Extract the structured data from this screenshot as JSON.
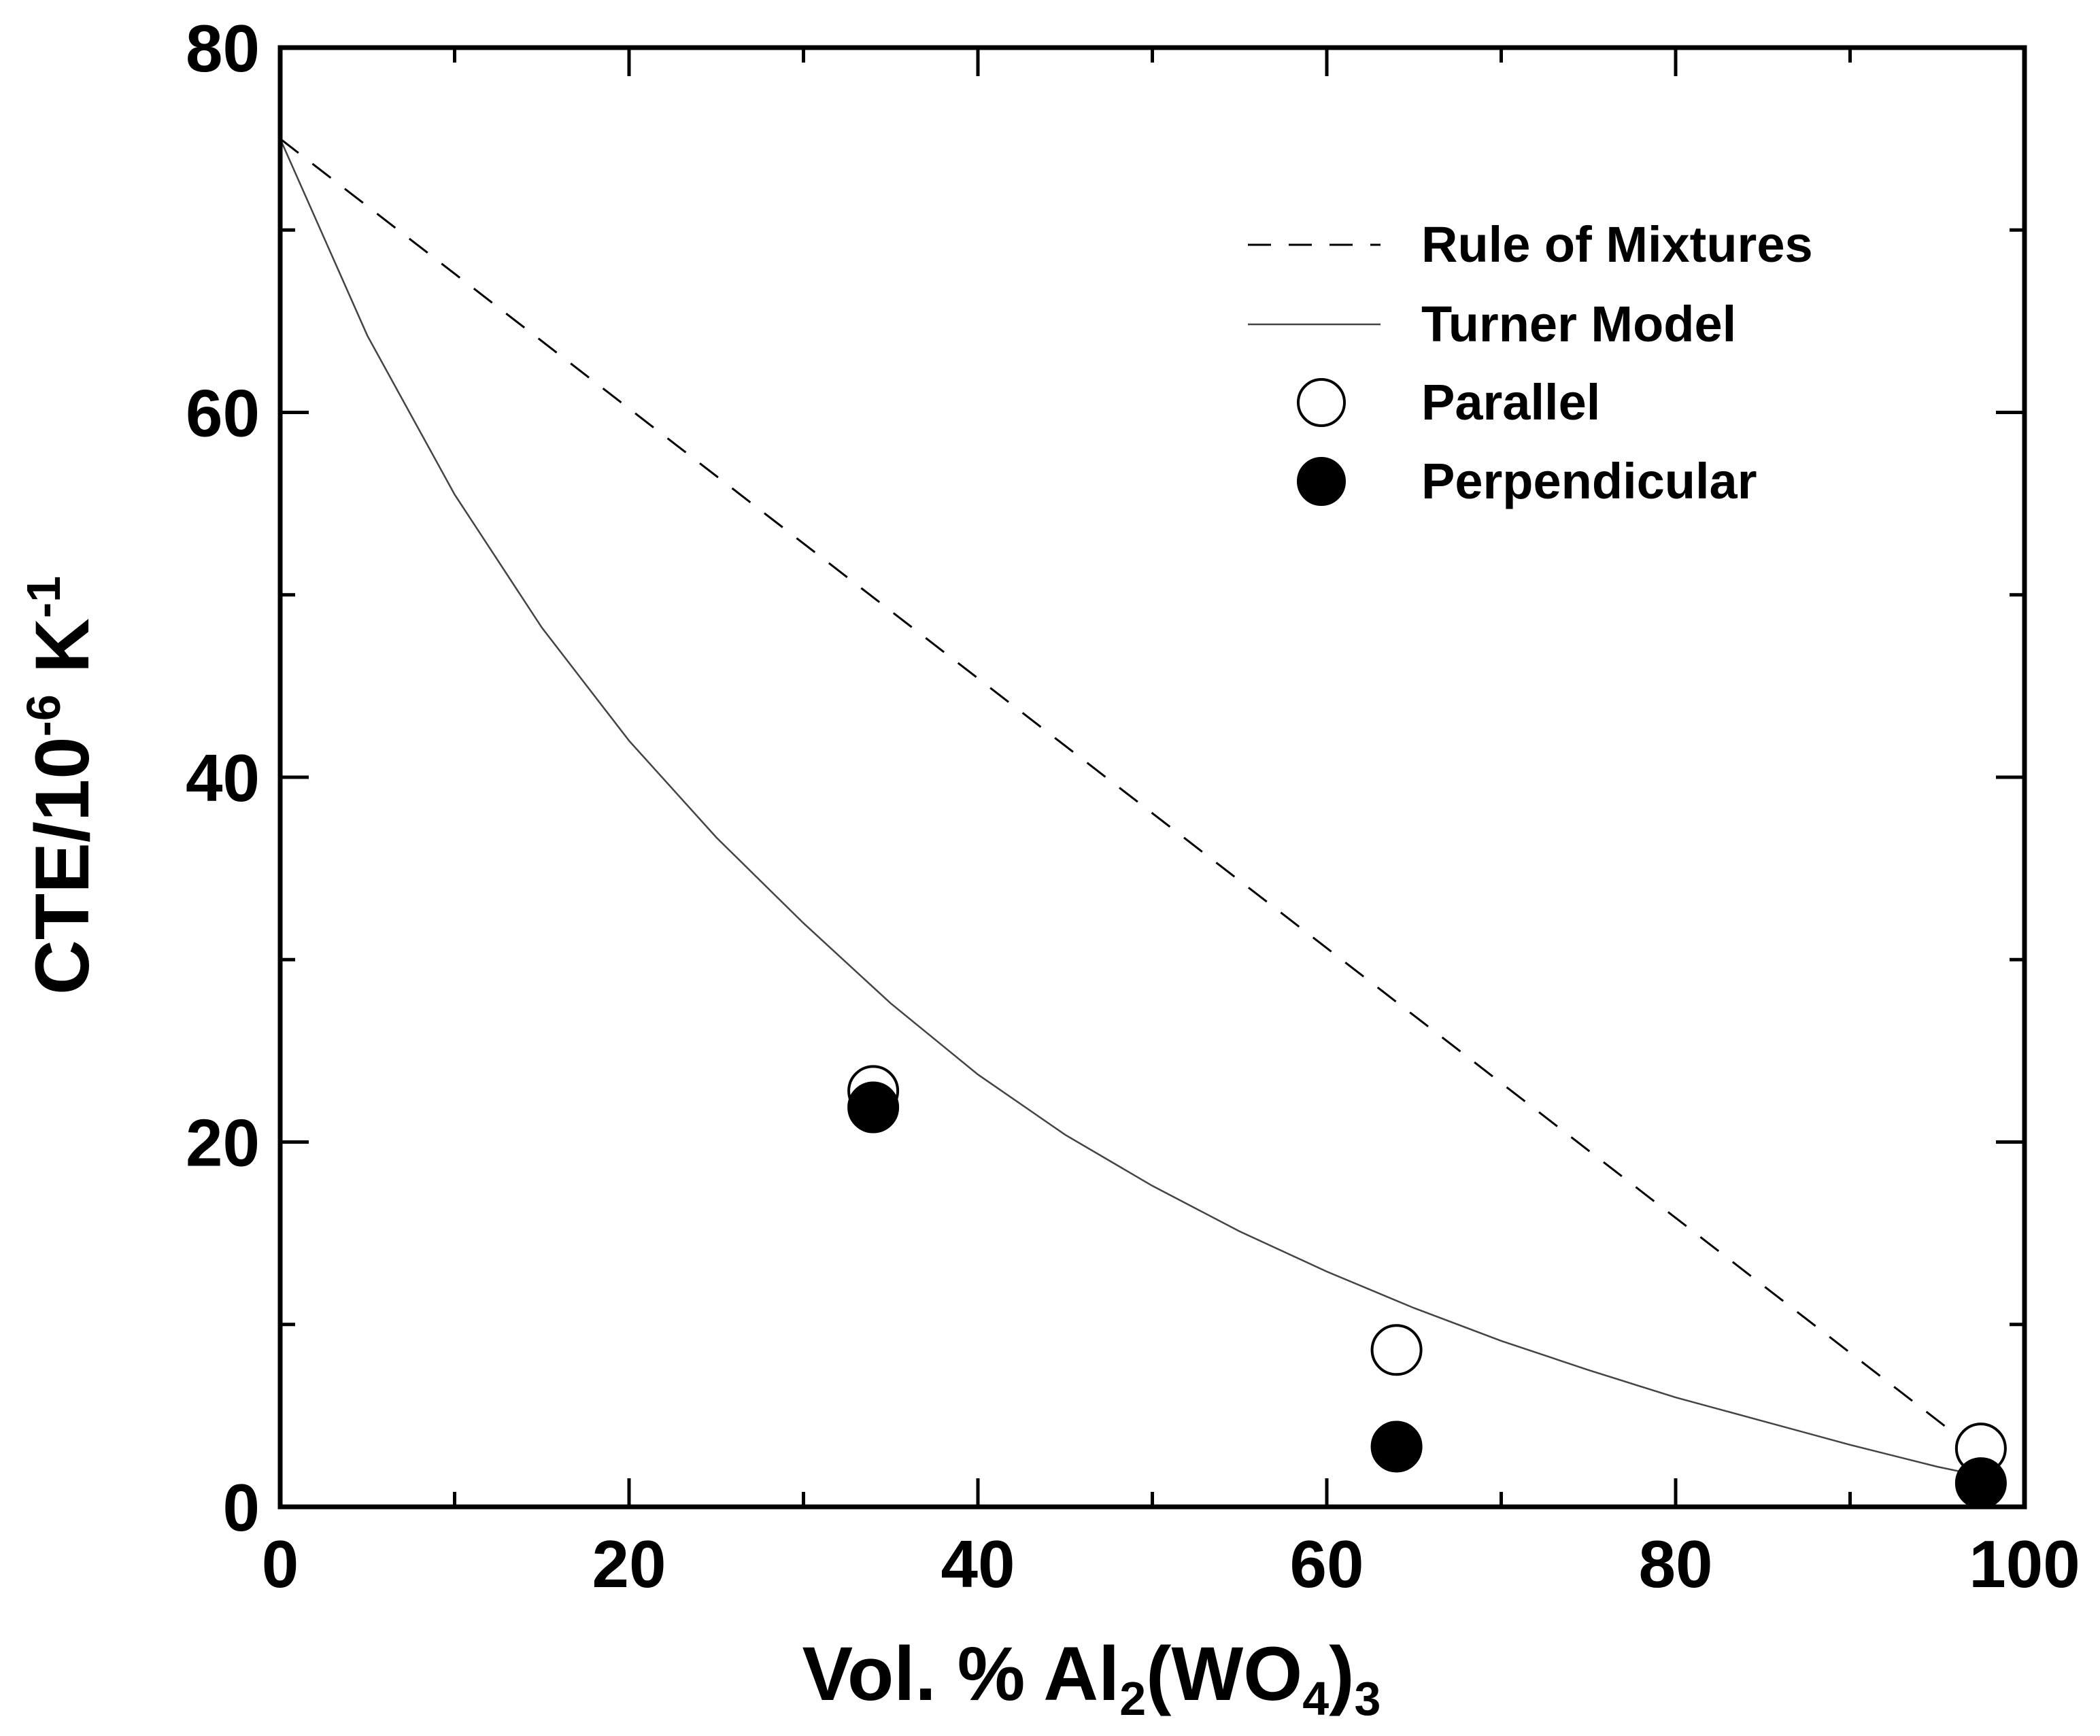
{
  "chart_data": {
    "type": "line",
    "x_label": {
      "prefix": "Vol. % Al",
      "sub1": "2",
      "mid": "(WO",
      "sub2": "4",
      "close": ")",
      "sub3": "3"
    },
    "y_label": {
      "main": "CTE/10",
      "sup1": "-6",
      "unit": " K",
      "sup2": "-1"
    },
    "xlim": [
      0,
      100
    ],
    "ylim": [
      0,
      80
    ],
    "x_ticks": [
      0,
      20,
      40,
      60,
      80,
      100
    ],
    "y_ticks": [
      0,
      20,
      40,
      60,
      80
    ],
    "x_minor_step": 10,
    "y_minor_step": 10,
    "series": [
      {
        "name": "Rule of Mixtures",
        "style": "dashed",
        "color": "#000000",
        "x": [
          0,
          97.5
        ],
        "y": [
          75,
          2.9
        ]
      },
      {
        "name": "Turner Model",
        "style": "solid",
        "color": "#444444",
        "x": [
          0,
          5,
          10,
          15,
          20,
          25,
          30,
          35,
          40,
          45,
          50,
          55,
          60,
          65,
          70,
          75,
          80,
          85,
          90,
          95,
          97.5
        ],
        "y": [
          75,
          64.2,
          55.5,
          48.2,
          42.0,
          36.7,
          32.0,
          27.6,
          23.7,
          20.4,
          17.6,
          15.1,
          12.9,
          10.9,
          9.1,
          7.5,
          6.0,
          4.7,
          3.4,
          2.2,
          1.7
        ]
      },
      {
        "name": "Parallel",
        "style": "open-circle",
        "color": "#000000",
        "x": [
          34,
          64,
          97.5
        ],
        "y": [
          22.8,
          8.6,
          3.2
        ]
      },
      {
        "name": "Perpendicular",
        "style": "filled-circle",
        "color": "#000000",
        "x": [
          34,
          64,
          97.5
        ],
        "y": [
          21.9,
          3.3,
          1.3
        ]
      }
    ],
    "legend": {
      "placement": "top-right",
      "entries": [
        "Rule of Mixtures",
        "Turner Model",
        "Parallel",
        "Perpendicular"
      ]
    }
  }
}
